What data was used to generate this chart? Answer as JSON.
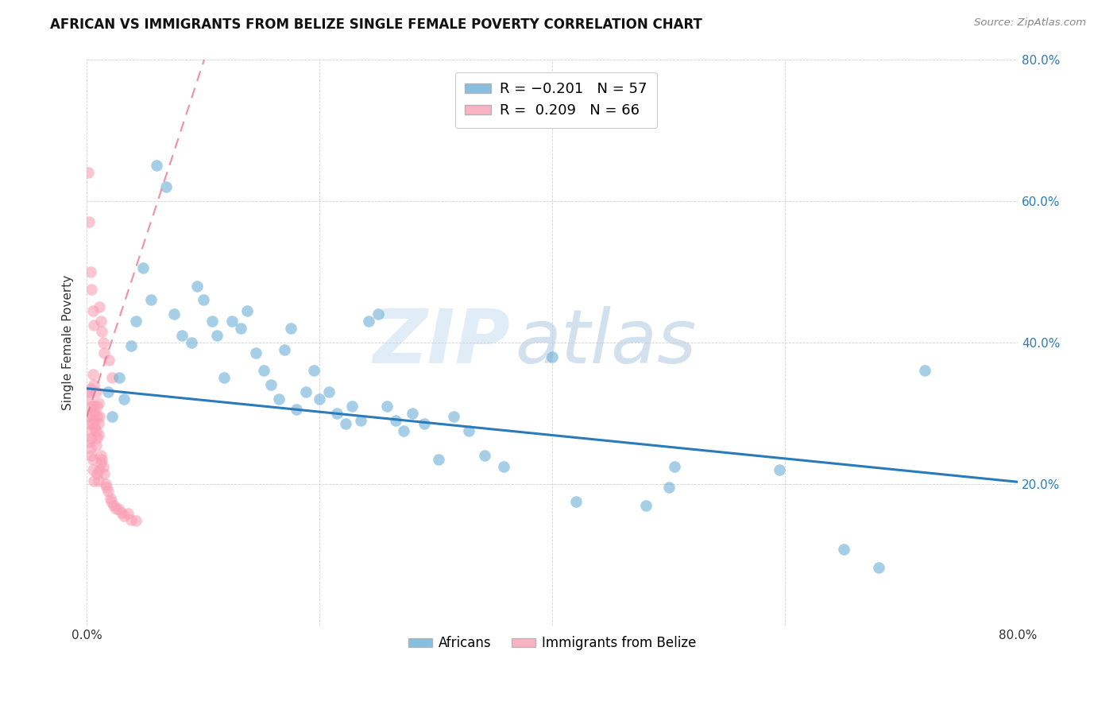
{
  "title": "AFRICAN VS IMMIGRANTS FROM BELIZE SINGLE FEMALE POVERTY CORRELATION CHART",
  "source": "Source: ZipAtlas.com",
  "ylabel": "Single Female Poverty",
  "xlim": [
    0.0,
    0.8
  ],
  "ylim": [
    0.0,
    0.8
  ],
  "color_blue": "#6baed6",
  "color_pink": "#fa9fb5",
  "color_blue_line": "#2b7bba",
  "color_pink_line": "#e8718d",
  "africans_x": [
    0.018,
    0.022,
    0.028,
    0.032,
    0.038,
    0.042,
    0.048,
    0.055,
    0.06,
    0.068,
    0.075,
    0.082,
    0.09,
    0.095,
    0.1,
    0.108,
    0.112,
    0.118,
    0.125,
    0.132,
    0.138,
    0.145,
    0.152,
    0.158,
    0.165,
    0.17,
    0.175,
    0.18,
    0.188,
    0.195,
    0.2,
    0.208,
    0.215,
    0.222,
    0.228,
    0.235,
    0.242,
    0.25,
    0.258,
    0.265,
    0.272,
    0.28,
    0.29,
    0.302,
    0.315,
    0.328,
    0.342,
    0.358,
    0.4,
    0.42,
    0.48,
    0.5,
    0.505,
    0.595,
    0.65,
    0.68,
    0.72
  ],
  "africans_y": [
    0.33,
    0.295,
    0.35,
    0.32,
    0.395,
    0.43,
    0.505,
    0.46,
    0.65,
    0.62,
    0.44,
    0.41,
    0.4,
    0.48,
    0.46,
    0.43,
    0.41,
    0.35,
    0.43,
    0.42,
    0.445,
    0.385,
    0.36,
    0.34,
    0.32,
    0.39,
    0.42,
    0.305,
    0.33,
    0.36,
    0.32,
    0.33,
    0.3,
    0.285,
    0.31,
    0.29,
    0.43,
    0.44,
    0.31,
    0.29,
    0.275,
    0.3,
    0.285,
    0.235,
    0.295,
    0.275,
    0.24,
    0.225,
    0.38,
    0.175,
    0.17,
    0.195,
    0.225,
    0.22,
    0.108,
    0.082,
    0.36
  ],
  "belize_x": [
    0.001,
    0.001,
    0.002,
    0.002,
    0.002,
    0.003,
    0.003,
    0.003,
    0.003,
    0.004,
    0.004,
    0.004,
    0.005,
    0.005,
    0.005,
    0.005,
    0.006,
    0.006,
    0.006,
    0.007,
    0.007,
    0.007,
    0.008,
    0.008,
    0.008,
    0.009,
    0.009,
    0.009,
    0.009,
    0.01,
    0.01,
    0.01,
    0.01,
    0.011,
    0.011,
    0.011,
    0.012,
    0.012,
    0.012,
    0.013,
    0.013,
    0.014,
    0.014,
    0.015,
    0.015,
    0.016,
    0.017,
    0.018,
    0.019,
    0.02,
    0.021,
    0.022,
    0.023,
    0.025,
    0.027,
    0.03,
    0.032,
    0.035,
    0.038,
    0.042,
    0.001,
    0.002,
    0.003,
    0.004,
    0.005,
    0.006
  ],
  "belize_y": [
    0.295,
    0.32,
    0.285,
    0.33,
    0.26,
    0.3,
    0.275,
    0.335,
    0.25,
    0.265,
    0.31,
    0.24,
    0.235,
    0.355,
    0.22,
    0.285,
    0.34,
    0.205,
    0.31,
    0.3,
    0.29,
    0.28,
    0.33,
    0.255,
    0.275,
    0.265,
    0.31,
    0.215,
    0.295,
    0.205,
    0.315,
    0.285,
    0.27,
    0.295,
    0.45,
    0.22,
    0.24,
    0.43,
    0.23,
    0.235,
    0.415,
    0.225,
    0.4,
    0.215,
    0.385,
    0.2,
    0.195,
    0.19,
    0.375,
    0.18,
    0.175,
    0.35,
    0.17,
    0.165,
    0.165,
    0.16,
    0.155,
    0.158,
    0.15,
    0.148,
    0.64,
    0.57,
    0.5,
    0.475,
    0.445,
    0.425
  ]
}
